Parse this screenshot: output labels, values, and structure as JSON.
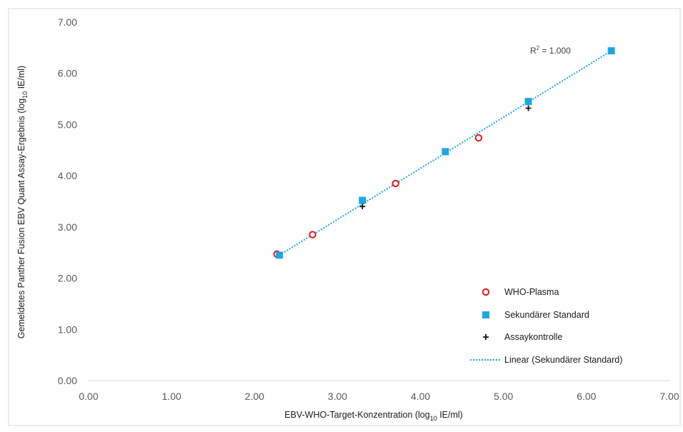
{
  "chart_data": {
    "type": "scatter",
    "xlabel_main": "EBV-WHO-Target-Konzentration (log",
    "xlabel_sub": "10",
    "xlabel_tail": " IE/ml)",
    "ylabel_main": "Gemeldetes Panther Fusion EBV Quant Assay-Ergebnis (log",
    "ylabel_sub": "10",
    "ylabel_tail": " IE/ml)",
    "xlim": [
      0,
      7
    ],
    "ylim": [
      0,
      7
    ],
    "x_ticks": [
      "0.00",
      "1.00",
      "2.00",
      "3.00",
      "4.00",
      "5.00",
      "6.00",
      "7.00"
    ],
    "y_ticks": [
      "0.00",
      "1.00",
      "2.00",
      "3.00",
      "4.00",
      "5.00",
      "6.00",
      "7.00"
    ],
    "grid": false,
    "legend_position": "bottom-right",
    "series": [
      {
        "name": "WHO-Plasma",
        "marker": "circle-open",
        "color": "#e8141c",
        "x": [
          2.27,
          2.7,
          3.7,
          4.7
        ],
        "y": [
          2.47,
          2.85,
          3.85,
          4.74
        ]
      },
      {
        "name": "Sekundärer Standard",
        "marker": "square",
        "color": "#1ea7e1",
        "x": [
          2.3,
          3.3,
          4.3,
          5.3,
          6.3
        ],
        "y": [
          2.45,
          3.52,
          4.47,
          5.45,
          6.44
        ]
      },
      {
        "name": "Assaykontrolle",
        "marker": "plus",
        "color": "#111111",
        "x": [
          3.3,
          5.3
        ],
        "y": [
          3.4,
          5.32
        ]
      }
    ],
    "trendline": {
      "name": "Linear (Sekundärer Standard)",
      "style": "dotted",
      "color": "#1ea7e1",
      "x": [
        2.3,
        6.3
      ],
      "y": [
        2.45,
        6.44
      ]
    },
    "annotation": {
      "r2_prefix": "R",
      "r2_sup": "2",
      "r2_value": " = 1.000"
    }
  }
}
